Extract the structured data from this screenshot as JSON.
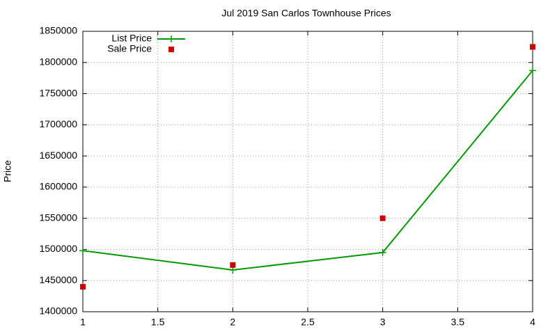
{
  "chart_data": {
    "type": "line",
    "title": "Jul 2019 San Carlos Townhouse Prices",
    "y_label": "Price",
    "x": [
      1,
      2,
      3,
      4
    ],
    "series": [
      {
        "name": "List Price",
        "color": "#009900",
        "values": [
          1498000,
          1467000,
          1495000,
          1787000
        ],
        "line": true,
        "marker": "plus"
      },
      {
        "name": "Sale Price",
        "color": "#cc0000",
        "values": [
          1440000,
          1475000,
          1550000,
          1825000
        ],
        "line": false,
        "marker": "square"
      }
    ],
    "xlim": [
      1,
      4
    ],
    "xticks": [
      1,
      1.5,
      2,
      2.5,
      3,
      3.5,
      4
    ],
    "ylim": [
      1400000,
      1850000
    ],
    "yticks": [
      1400000,
      1450000,
      1500000,
      1550000,
      1600000,
      1650000,
      1700000,
      1750000,
      1800000,
      1850000
    ],
    "grid": true,
    "legend": "top-left"
  }
}
